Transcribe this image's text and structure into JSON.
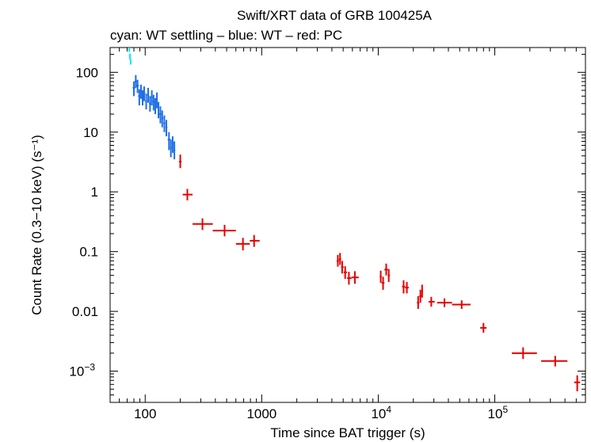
{
  "chart_data": {
    "type": "scatter",
    "title": "Swift/XRT data of GRB 100425A",
    "subtitle": "cyan: WT settling – blue: WT – red: PC",
    "xlabel": "Time since BAT trigger (s)",
    "ylabel": "Count Rate (0.3−10 keV) (s⁻¹)",
    "xscale": "log",
    "yscale": "log",
    "xlim": [
      50,
      600000
    ],
    "ylim": [
      0.0003,
      260
    ],
    "x_ticks": [
      {
        "value": 100,
        "base": "100",
        "exp": ""
      },
      {
        "value": 1000,
        "base": "1000",
        "exp": ""
      },
      {
        "value": 10000,
        "base": "10",
        "exp": "4"
      },
      {
        "value": 100000,
        "base": "10",
        "exp": "5"
      }
    ],
    "y_ticks": [
      {
        "value": 100,
        "base": "100",
        "exp": ""
      },
      {
        "value": 10,
        "base": "10",
        "exp": ""
      },
      {
        "value": 1,
        "base": "1",
        "exp": ""
      },
      {
        "value": 0.1,
        "base": "0.1",
        "exp": ""
      },
      {
        "value": 0.01,
        "base": "0.01",
        "exp": ""
      },
      {
        "value": 0.001,
        "base": "10",
        "exp": "−3"
      }
    ],
    "series": [
      {
        "name": "WT settling",
        "color": "#00e5ff",
        "points": [
          {
            "x": 73,
            "xlo": 72,
            "xhi": 74,
            "y": 240,
            "ylo": 220,
            "yhi": 260
          },
          {
            "x": 74,
            "xlo": 73.5,
            "xhi": 75,
            "y": 185,
            "ylo": 165,
            "yhi": 205
          },
          {
            "x": 75,
            "xlo": 74.5,
            "xhi": 76,
            "y": 150,
            "ylo": 135,
            "yhi": 165
          }
        ]
      },
      {
        "name": "WT",
        "color": "#1e6fe6",
        "points": [
          {
            "x": 80,
            "xlo": 78,
            "xhi": 82,
            "y": 55,
            "ylo": 40,
            "yhi": 70
          },
          {
            "x": 83,
            "xlo": 81,
            "xhi": 85,
            "y": 70,
            "ylo": 55,
            "yhi": 90
          },
          {
            "x": 86,
            "xlo": 84,
            "xhi": 88,
            "y": 60,
            "ylo": 45,
            "yhi": 75
          },
          {
            "x": 89,
            "xlo": 87,
            "xhi": 91,
            "y": 40,
            "ylo": 28,
            "yhi": 52
          },
          {
            "x": 92,
            "xlo": 90,
            "xhi": 94,
            "y": 48,
            "ylo": 36,
            "yhi": 62
          },
          {
            "x": 95,
            "xlo": 93,
            "xhi": 97,
            "y": 38,
            "ylo": 28,
            "yhi": 50
          },
          {
            "x": 98,
            "xlo": 96,
            "xhi": 100,
            "y": 45,
            "ylo": 33,
            "yhi": 58
          },
          {
            "x": 102,
            "xlo": 100,
            "xhi": 104,
            "y": 33,
            "ylo": 24,
            "yhi": 44
          },
          {
            "x": 106,
            "xlo": 104,
            "xhi": 108,
            "y": 42,
            "ylo": 31,
            "yhi": 55
          },
          {
            "x": 110,
            "xlo": 108,
            "xhi": 112,
            "y": 30,
            "ylo": 22,
            "yhi": 40
          },
          {
            "x": 114,
            "xlo": 112,
            "xhi": 116,
            "y": 38,
            "ylo": 28,
            "yhi": 50
          },
          {
            "x": 118,
            "xlo": 116,
            "xhi": 120,
            "y": 32,
            "ylo": 23,
            "yhi": 42
          },
          {
            "x": 122,
            "xlo": 120,
            "xhi": 124,
            "y": 28,
            "ylo": 20,
            "yhi": 37
          },
          {
            "x": 126,
            "xlo": 124,
            "xhi": 128,
            "y": 35,
            "ylo": 25,
            "yhi": 46
          },
          {
            "x": 130,
            "xlo": 128,
            "xhi": 132,
            "y": 24,
            "ylo": 17,
            "yhi": 32
          },
          {
            "x": 135,
            "xlo": 132,
            "xhi": 138,
            "y": 20,
            "ylo": 14,
            "yhi": 27
          },
          {
            "x": 140,
            "xlo": 138,
            "xhi": 143,
            "y": 17,
            "ylo": 12,
            "yhi": 23
          },
          {
            "x": 146,
            "xlo": 143,
            "xhi": 149,
            "y": 14,
            "ylo": 10,
            "yhi": 19
          },
          {
            "x": 152,
            "xlo": 149,
            "xhi": 155,
            "y": 12,
            "ylo": 8.5,
            "yhi": 16
          },
          {
            "x": 160,
            "xlo": 156,
            "xhi": 164,
            "y": 7.5,
            "ylo": 5.0,
            "yhi": 10
          },
          {
            "x": 166,
            "xlo": 163,
            "xhi": 169,
            "y": 5.5,
            "ylo": 3.8,
            "yhi": 7.5
          },
          {
            "x": 172,
            "xlo": 169,
            "xhi": 175,
            "y": 6.5,
            "ylo": 4.5,
            "yhi": 8.5
          },
          {
            "x": 178,
            "xlo": 175,
            "xhi": 181,
            "y": 5.0,
            "ylo": 3.5,
            "yhi": 7.0
          }
        ]
      },
      {
        "name": "PC",
        "color": "#e60000",
        "points": [
          {
            "x": 200,
            "xlo": 195,
            "xhi": 205,
            "y": 3.2,
            "ylo": 2.5,
            "yhi": 4.2
          },
          {
            "x": 230,
            "xlo": 210,
            "xhi": 255,
            "y": 0.9,
            "ylo": 0.72,
            "yhi": 1.12
          },
          {
            "x": 310,
            "xlo": 255,
            "xhi": 380,
            "y": 0.29,
            "ylo": 0.23,
            "yhi": 0.36
          },
          {
            "x": 480,
            "xlo": 380,
            "xhi": 600,
            "y": 0.225,
            "ylo": 0.18,
            "yhi": 0.28
          },
          {
            "x": 690,
            "xlo": 600,
            "xhi": 790,
            "y": 0.135,
            "ylo": 0.105,
            "yhi": 0.17
          },
          {
            "x": 860,
            "xlo": 790,
            "xhi": 960,
            "y": 0.152,
            "ylo": 0.12,
            "yhi": 0.19
          },
          {
            "x": 4500,
            "xlo": 4400,
            "xhi": 4600,
            "y": 0.07,
            "ylo": 0.056,
            "yhi": 0.088
          },
          {
            "x": 4700,
            "xlo": 4600,
            "xhi": 4800,
            "y": 0.075,
            "ylo": 0.06,
            "yhi": 0.095
          },
          {
            "x": 4900,
            "xlo": 4800,
            "xhi": 5050,
            "y": 0.055,
            "ylo": 0.043,
            "yhi": 0.07
          },
          {
            "x": 5200,
            "xlo": 5050,
            "xhi": 5400,
            "y": 0.045,
            "ylo": 0.035,
            "yhi": 0.057
          },
          {
            "x": 5600,
            "xlo": 5400,
            "xhi": 5900,
            "y": 0.036,
            "ylo": 0.028,
            "yhi": 0.046
          },
          {
            "x": 6300,
            "xlo": 5900,
            "xhi": 6800,
            "y": 0.037,
            "ylo": 0.029,
            "yhi": 0.047
          },
          {
            "x": 10500,
            "xlo": 10300,
            "xhi": 10700,
            "y": 0.038,
            "ylo": 0.03,
            "yhi": 0.048
          },
          {
            "x": 11000,
            "xlo": 10700,
            "xhi": 11300,
            "y": 0.03,
            "ylo": 0.023,
            "yhi": 0.038
          },
          {
            "x": 11700,
            "xlo": 11300,
            "xhi": 12100,
            "y": 0.05,
            "ylo": 0.04,
            "yhi": 0.063
          },
          {
            "x": 12300,
            "xlo": 12100,
            "xhi": 12600,
            "y": 0.04,
            "ylo": 0.031,
            "yhi": 0.051
          },
          {
            "x": 16500,
            "xlo": 16000,
            "xhi": 17000,
            "y": 0.026,
            "ylo": 0.02,
            "yhi": 0.033
          },
          {
            "x": 17600,
            "xlo": 17000,
            "xhi": 18300,
            "y": 0.025,
            "ylo": 0.02,
            "yhi": 0.031
          },
          {
            "x": 22000,
            "xlo": 21500,
            "xhi": 22500,
            "y": 0.014,
            "ylo": 0.011,
            "yhi": 0.018
          },
          {
            "x": 23000,
            "xlo": 22500,
            "xhi": 23500,
            "y": 0.018,
            "ylo": 0.014,
            "yhi": 0.023
          },
          {
            "x": 23800,
            "xlo": 23500,
            "xhi": 24200,
            "y": 0.022,
            "ylo": 0.017,
            "yhi": 0.028
          },
          {
            "x": 28500,
            "xlo": 27000,
            "xhi": 30500,
            "y": 0.0145,
            "ylo": 0.012,
            "yhi": 0.0175
          },
          {
            "x": 37000,
            "xlo": 32000,
            "xhi": 43000,
            "y": 0.014,
            "ylo": 0.0118,
            "yhi": 0.0165
          },
          {
            "x": 52000,
            "xlo": 43000,
            "xhi": 62000,
            "y": 0.013,
            "ylo": 0.011,
            "yhi": 0.0153
          },
          {
            "x": 80000,
            "xlo": 75000,
            "xhi": 85000,
            "y": 0.0053,
            "ylo": 0.0044,
            "yhi": 0.0064
          },
          {
            "x": 175000,
            "xlo": 140000,
            "xhi": 230000,
            "y": 0.002,
            "ylo": 0.0016,
            "yhi": 0.0025
          },
          {
            "x": 330000,
            "xlo": 250000,
            "xhi": 420000,
            "y": 0.00148,
            "ylo": 0.0012,
            "yhi": 0.0018
          },
          {
            "x": 510000,
            "xlo": 480000,
            "xhi": 540000,
            "y": 0.00065,
            "ylo": 0.00046,
            "yhi": 0.00085
          }
        ]
      }
    ]
  }
}
